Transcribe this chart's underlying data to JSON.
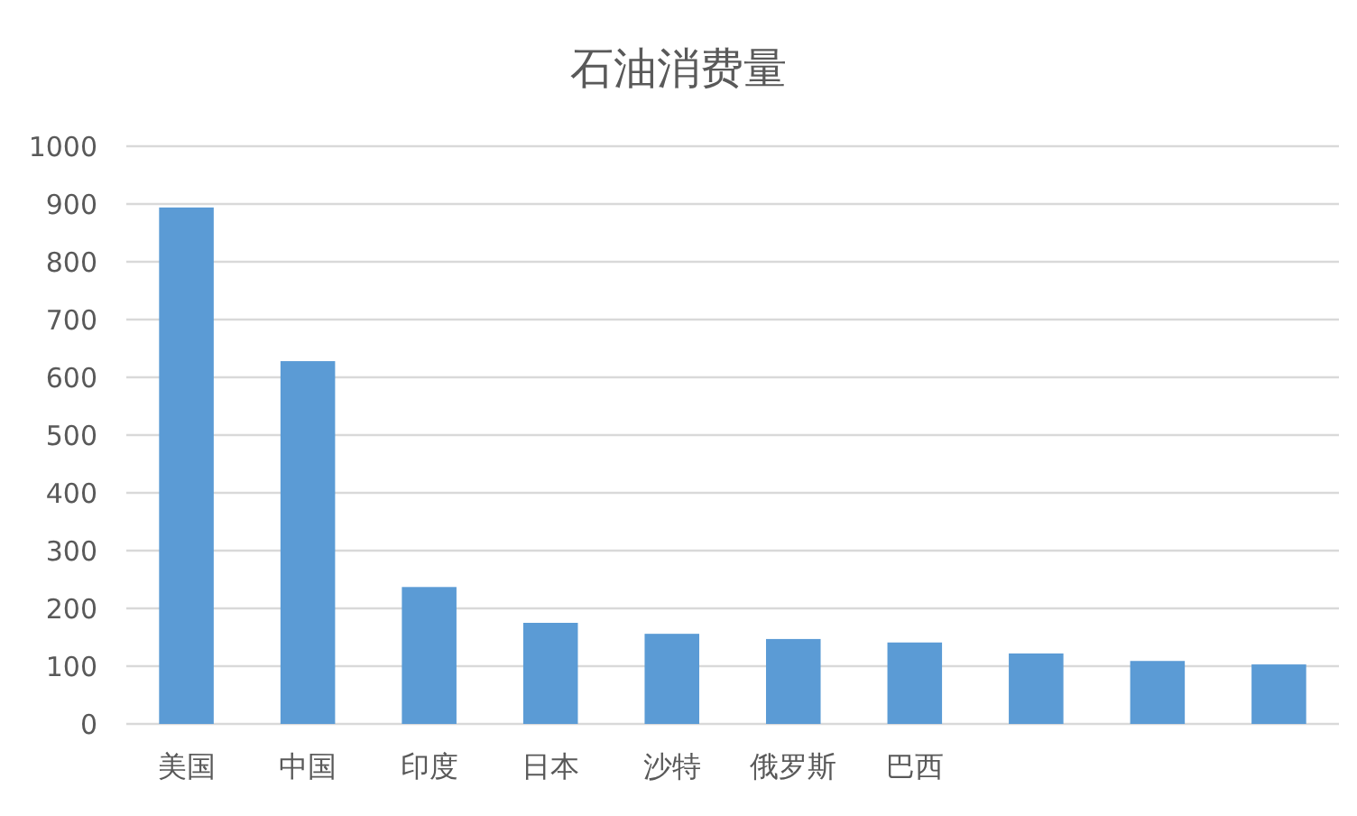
{
  "chart_data": {
    "type": "bar",
    "title": "石油消费量",
    "categories": [
      "美国",
      "中国",
      "印度",
      "日本",
      "沙特",
      "俄罗斯",
      "巴西",
      null,
      null,
      null
    ],
    "values": [
      894,
      628,
      237,
      175,
      156,
      147,
      141,
      122,
      109,
      103
    ],
    "color": "#5b9bd5",
    "ylim": [
      0,
      1000
    ],
    "yticks": [
      0,
      100,
      200,
      300,
      400,
      500,
      600,
      700,
      800,
      900,
      1000
    ],
    "grid": "y"
  }
}
